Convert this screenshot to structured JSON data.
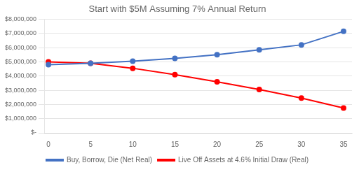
{
  "chart_data": {
    "type": "line",
    "title": "Start with $5M Assuming 7% Annual Return",
    "x": [
      0,
      5,
      10,
      15,
      20,
      25,
      30,
      35
    ],
    "series": [
      {
        "name": "Buy, Borrow, Die (Net Real)",
        "color": "#4472C4",
        "marker": "circle",
        "values": [
          4807000,
          4900000,
          5050000,
          5250000,
          5500000,
          5850000,
          6200000,
          7150000
        ]
      },
      {
        "name": "Live Off Assets at 4.6% Initial Draw (Real)",
        "color": "#FF0000",
        "marker": "circle",
        "values": [
          5000000,
          4900000,
          4550000,
          4100000,
          3600000,
          3050000,
          2450000,
          1750000
        ]
      }
    ],
    "xlim": [
      -0.5,
      36
    ],
    "xticks": [
      0,
      5,
      10,
      15,
      20,
      25,
      30,
      35
    ],
    "ylim": [
      0,
      8000000
    ],
    "yticks": [
      {
        "value": 0,
        "label": "$-"
      },
      {
        "value": 1000000,
        "label": "$1,000,000"
      },
      {
        "value": 2000000,
        "label": "$2,000,000"
      },
      {
        "value": 3000000,
        "label": "$3,000,000"
      },
      {
        "value": 4000000,
        "label": "$4,000,000"
      },
      {
        "value": 5000000,
        "label": "$5,000,000"
      },
      {
        "value": 6000000,
        "label": "$6,000,000"
      },
      {
        "value": 7000000,
        "label": "$7,000,000"
      },
      {
        "value": 8000000,
        "label": "$8,000,000"
      }
    ],
    "grid": "y",
    "legend": "bottom"
  }
}
